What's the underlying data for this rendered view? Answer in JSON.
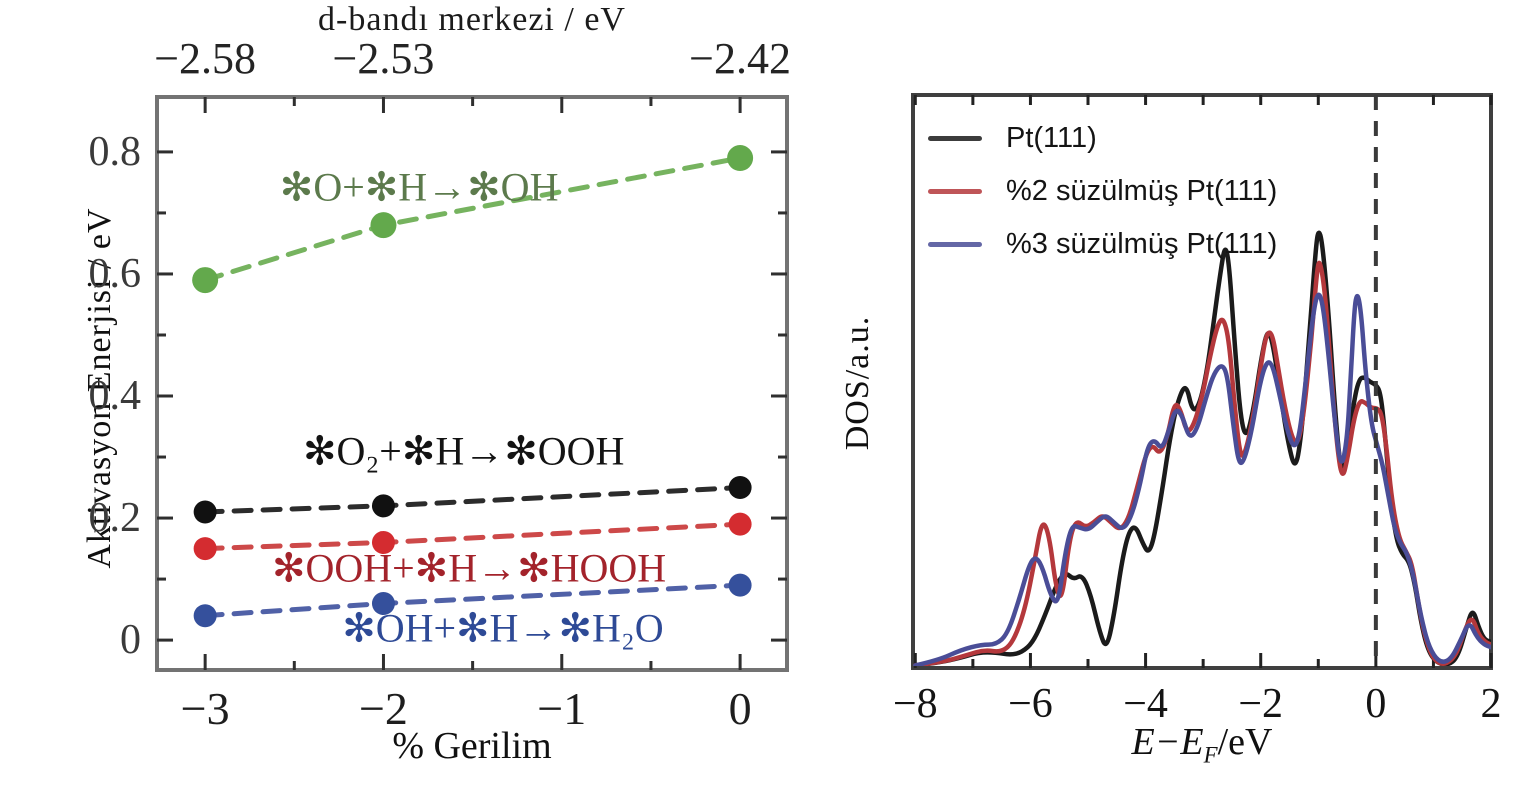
{
  "chart_data": [
    {
      "type": "scatter-line",
      "top_axis_title": "d-bandı merkezi / eV",
      "top_axis_ticks": {
        "positions": [
          -3,
          -2,
          0
        ],
        "labels": [
          "−2.58",
          "−2.53",
          "−2.42"
        ]
      },
      "xlabel": "% Gerilim",
      "ylabel": "Aktivasyon Enerjisi / eV",
      "xlim": [
        -3.27,
        0.263
      ],
      "ylim": [
        -0.049,
        0.89
      ],
      "x_ticks": {
        "major": [
          -3,
          -2,
          -1,
          0
        ],
        "minor": [
          -2.5,
          -1.5,
          -0.5
        ],
        "labels": [
          "−3",
          "−2",
          "−1",
          "0"
        ]
      },
      "y_ticks": {
        "major": [
          0,
          0.2,
          0.4,
          0.6,
          0.8
        ],
        "minor": [
          0.1,
          0.3,
          0.5,
          0.7
        ],
        "labels": [
          "0",
          "0.2",
          "0.4",
          "0.6",
          "0.8"
        ]
      },
      "grid": false,
      "series": [
        {
          "name": "O + H -> OH",
          "label": "✻O+✻H→✻OH",
          "color": "#6aad51",
          "dot_color": "#63a94c",
          "label_color": "#5c7a4c",
          "x": [
            -3,
            -2,
            0
          ],
          "values": [
            0.59,
            0.68,
            0.79
          ],
          "label_pos": [
            -1.8,
            0.742
          ]
        },
        {
          "name": "O2 + H -> OOH",
          "label": "✻O₂+✻H→✻OOH",
          "color": "#1a1a1a",
          "dot_color": "#111111",
          "label_color": "#131313",
          "x": [
            -3,
            -2,
            0
          ],
          "values": [
            0.21,
            0.22,
            0.25
          ],
          "label_pos": [
            -1.55,
            0.31
          ]
        },
        {
          "name": "OOH + H -> HOOH",
          "label": "✻OOH+✻H→✻HOOH",
          "color": "#c93a3a",
          "dot_color": "#d42c30",
          "label_color": "#a3232b",
          "x": [
            -3,
            -2,
            0
          ],
          "values": [
            0.15,
            0.16,
            0.19
          ],
          "label_pos": [
            -1.52,
            0.118
          ]
        },
        {
          "name": "OH + H -> H2O",
          "label": "✻OH+✻H→✻H₂O",
          "color": "#41549f",
          "dot_color": "#35509c",
          "label_color": "#2e4a96",
          "x": [
            -3,
            -2,
            0
          ],
          "values": [
            0.04,
            0.06,
            0.09
          ],
          "label_pos": [
            -1.33,
            0.02
          ]
        }
      ]
    },
    {
      "type": "line",
      "xlabel_parts": [
        "E−E",
        "F",
        "/eV"
      ],
      "ylabel": "DOS/a.u.",
      "xlim": [
        -8.04,
        2.0
      ],
      "ylim": [
        0,
        1.102
      ],
      "x_ticks": {
        "major": [
          -8,
          -6,
          -4,
          -2,
          0,
          2
        ],
        "minor": [
          -7,
          -5,
          -3,
          -1,
          1
        ],
        "labels": [
          "−8",
          "−6",
          "−4",
          "−2",
          "0",
          "2"
        ]
      },
      "top_ticks": [
        -8,
        -7,
        -6,
        -5,
        -4,
        -3,
        -2,
        -1,
        0,
        1,
        2
      ],
      "fermi_line_x": 0,
      "legend_position": "top-left",
      "grid": false,
      "series": [
        {
          "name": "Pt(111)",
          "color": "#1b1b1b",
          "points": [
            [
              -8,
              0.005
            ],
            [
              -7.6,
              0.01
            ],
            [
              -7.2,
              0.02
            ],
            [
              -6.9,
              0.03
            ],
            [
              -6.6,
              0.03
            ],
            [
              -6.35,
              0.025
            ],
            [
              -6.15,
              0.03
            ],
            [
              -5.95,
              0.05
            ],
            [
              -5.75,
              0.1
            ],
            [
              -5.55,
              0.16
            ],
            [
              -5.4,
              0.185
            ],
            [
              -5.25,
              0.17
            ],
            [
              -5.1,
              0.18
            ],
            [
              -4.95,
              0.14
            ],
            [
              -4.8,
              0.07
            ],
            [
              -4.68,
              0.035
            ],
            [
              -4.55,
              0.1
            ],
            [
              -4.42,
              0.2
            ],
            [
              -4.3,
              0.26
            ],
            [
              -4.18,
              0.275
            ],
            [
              -4.05,
              0.24
            ],
            [
              -3.95,
              0.22
            ],
            [
              -3.85,
              0.25
            ],
            [
              -3.7,
              0.35
            ],
            [
              -3.58,
              0.44
            ],
            [
              -3.45,
              0.51
            ],
            [
              -3.3,
              0.55
            ],
            [
              -3.18,
              0.49
            ],
            [
              -3.05,
              0.51
            ],
            [
              -2.92,
              0.58
            ],
            [
              -2.8,
              0.68
            ],
            [
              -2.7,
              0.76
            ],
            [
              -2.62,
              0.815
            ],
            [
              -2.55,
              0.78
            ],
            [
              -2.45,
              0.62
            ],
            [
              -2.35,
              0.48
            ],
            [
              -2.25,
              0.44
            ],
            [
              -2.12,
              0.5
            ],
            [
              -2,
              0.59
            ],
            [
              -1.88,
              0.655
            ],
            [
              -1.78,
              0.62
            ],
            [
              -1.65,
              0.52
            ],
            [
              -1.52,
              0.43
            ],
            [
              -1.4,
              0.38
            ],
            [
              -1.3,
              0.44
            ],
            [
              -1.18,
              0.6
            ],
            [
              -1.05,
              0.8
            ],
            [
              -1,
              0.845
            ],
            [
              -0.93,
              0.82
            ],
            [
              -0.82,
              0.68
            ],
            [
              -0.7,
              0.48
            ],
            [
              -0.6,
              0.37
            ],
            [
              -0.5,
              0.41
            ],
            [
              -0.4,
              0.5
            ],
            [
              -0.3,
              0.555
            ],
            [
              -0.2,
              0.56
            ],
            [
              -0.1,
              0.55
            ],
            [
              0,
              0.545
            ],
            [
              0.08,
              0.53
            ],
            [
              0.15,
              0.46
            ],
            [
              0.25,
              0.33
            ],
            [
              0.35,
              0.25
            ],
            [
              0.45,
              0.22
            ],
            [
              0.58,
              0.205
            ],
            [
              0.68,
              0.16
            ],
            [
              0.78,
              0.09
            ],
            [
              0.9,
              0.035
            ],
            [
              1.05,
              0.01
            ],
            [
              1.25,
              0.005
            ],
            [
              1.42,
              0.02
            ],
            [
              1.58,
              0.08
            ],
            [
              1.68,
              0.115
            ],
            [
              1.78,
              0.08
            ],
            [
              1.88,
              0.055
            ],
            [
              2,
              0.05
            ]
          ]
        },
        {
          "name": "%2 süzülmüş Pt(111)",
          "color": "#b4383c",
          "points": [
            [
              -8,
              0.005
            ],
            [
              -7.5,
              0.012
            ],
            [
              -7.1,
              0.025
            ],
            [
              -6.8,
              0.035
            ],
            [
              -6.5,
              0.03
            ],
            [
              -6.3,
              0.05
            ],
            [
              -6.1,
              0.11
            ],
            [
              -5.92,
              0.21
            ],
            [
              -5.8,
              0.285
            ],
            [
              -5.68,
              0.26
            ],
            [
              -5.55,
              0.15
            ],
            [
              -5.45,
              0.13
            ],
            [
              -5.32,
              0.25
            ],
            [
              -5.2,
              0.285
            ],
            [
              -5.05,
              0.27
            ],
            [
              -4.9,
              0.28
            ],
            [
              -4.75,
              0.295
            ],
            [
              -4.6,
              0.28
            ],
            [
              -4.45,
              0.265
            ],
            [
              -4.3,
              0.285
            ],
            [
              -4.15,
              0.345
            ],
            [
              -4,
              0.41
            ],
            [
              -3.88,
              0.43
            ],
            [
              -3.75,
              0.41
            ],
            [
              -3.62,
              0.445
            ],
            [
              -3.5,
              0.51
            ],
            [
              -3.4,
              0.5
            ],
            [
              -3.28,
              0.45
            ],
            [
              -3.15,
              0.47
            ],
            [
              -3,
              0.53
            ],
            [
              -2.88,
              0.6
            ],
            [
              -2.75,
              0.66
            ],
            [
              -2.65,
              0.675
            ],
            [
              -2.55,
              0.63
            ],
            [
              -2.45,
              0.5
            ],
            [
              -2.35,
              0.4
            ],
            [
              -2.25,
              0.42
            ],
            [
              -2.12,
              0.49
            ],
            [
              -2,
              0.58
            ],
            [
              -1.9,
              0.645
            ],
            [
              -1.8,
              0.645
            ],
            [
              -1.7,
              0.58
            ],
            [
              -1.58,
              0.5
            ],
            [
              -1.45,
              0.44
            ],
            [
              -1.35,
              0.43
            ],
            [
              -1.25,
              0.49
            ],
            [
              -1.12,
              0.63
            ],
            [
              -1.02,
              0.77
            ],
            [
              -0.97,
              0.785
            ],
            [
              -0.88,
              0.72
            ],
            [
              -0.78,
              0.57
            ],
            [
              -0.67,
              0.42
            ],
            [
              -0.58,
              0.36
            ],
            [
              -0.48,
              0.41
            ],
            [
              -0.38,
              0.48
            ],
            [
              -0.28,
              0.515
            ],
            [
              -0.18,
              0.51
            ],
            [
              -0.08,
              0.5
            ],
            [
              0.02,
              0.5
            ],
            [
              0.1,
              0.49
            ],
            [
              0.18,
              0.43
            ],
            [
              0.28,
              0.32
            ],
            [
              0.4,
              0.25
            ],
            [
              0.52,
              0.225
            ],
            [
              0.63,
              0.2
            ],
            [
              0.73,
              0.13
            ],
            [
              0.85,
              0.06
            ],
            [
              1,
              0.015
            ],
            [
              1.2,
              0.005
            ],
            [
              1.4,
              0.025
            ],
            [
              1.55,
              0.075
            ],
            [
              1.67,
              0.1
            ],
            [
              1.78,
              0.065
            ],
            [
              1.9,
              0.05
            ],
            [
              2,
              0.045
            ]
          ]
        },
        {
          "name": "%3 süzülmüş Pt(111)",
          "color": "#4a4d97",
          "points": [
            [
              -8,
              0.005
            ],
            [
              -7.6,
              0.015
            ],
            [
              -7.2,
              0.035
            ],
            [
              -6.85,
              0.045
            ],
            [
              -6.6,
              0.045
            ],
            [
              -6.4,
              0.065
            ],
            [
              -6.2,
              0.13
            ],
            [
              -6.02,
              0.2
            ],
            [
              -5.9,
              0.215
            ],
            [
              -5.78,
              0.19
            ],
            [
              -5.65,
              0.14
            ],
            [
              -5.52,
              0.12
            ],
            [
              -5.4,
              0.22
            ],
            [
              -5.28,
              0.275
            ],
            [
              -5.15,
              0.27
            ],
            [
              -5,
              0.265
            ],
            [
              -4.85,
              0.28
            ],
            [
              -4.7,
              0.295
            ],
            [
              -4.55,
              0.28
            ],
            [
              -4.4,
              0.265
            ],
            [
              -4.25,
              0.29
            ],
            [
              -4.1,
              0.35
            ],
            [
              -3.97,
              0.425
            ],
            [
              -3.85,
              0.44
            ],
            [
              -3.72,
              0.42
            ],
            [
              -3.6,
              0.455
            ],
            [
              -3.48,
              0.5
            ],
            [
              -3.36,
              0.485
            ],
            [
              -3.24,
              0.44
            ],
            [
              -3.1,
              0.46
            ],
            [
              -2.95,
              0.52
            ],
            [
              -2.82,
              0.565
            ],
            [
              -2.68,
              0.585
            ],
            [
              -2.58,
              0.565
            ],
            [
              -2.48,
              0.47
            ],
            [
              -2.38,
              0.39
            ],
            [
              -2.28,
              0.4
            ],
            [
              -2.15,
              0.46
            ],
            [
              -2.02,
              0.545
            ],
            [
              -1.9,
              0.59
            ],
            [
              -1.8,
              0.585
            ],
            [
              -1.68,
              0.53
            ],
            [
              -1.55,
              0.46
            ],
            [
              -1.42,
              0.42
            ],
            [
              -1.32,
              0.45
            ],
            [
              -1.2,
              0.57
            ],
            [
              -1.08,
              0.69
            ],
            [
              -1,
              0.725
            ],
            [
              -0.92,
              0.7
            ],
            [
              -0.82,
              0.6
            ],
            [
              -0.7,
              0.46
            ],
            [
              -0.6,
              0.38
            ],
            [
              -0.5,
              0.44
            ],
            [
              -0.44,
              0.55
            ],
            [
              -0.38,
              0.68
            ],
            [
              -0.33,
              0.725
            ],
            [
              -0.26,
              0.69
            ],
            [
              -0.18,
              0.57
            ],
            [
              -0.08,
              0.47
            ],
            [
              0.02,
              0.43
            ],
            [
              0.12,
              0.39
            ],
            [
              0.22,
              0.33
            ],
            [
              0.32,
              0.27
            ],
            [
              0.42,
              0.24
            ],
            [
              0.55,
              0.22
            ],
            [
              0.67,
              0.17
            ],
            [
              0.78,
              0.1
            ],
            [
              0.92,
              0.04
            ],
            [
              1.1,
              0.01
            ],
            [
              1.3,
              0.015
            ],
            [
              1.48,
              0.055
            ],
            [
              1.62,
              0.09
            ],
            [
              1.75,
              0.06
            ],
            [
              1.88,
              0.045
            ],
            [
              2,
              0.04
            ]
          ]
        }
      ]
    }
  ]
}
